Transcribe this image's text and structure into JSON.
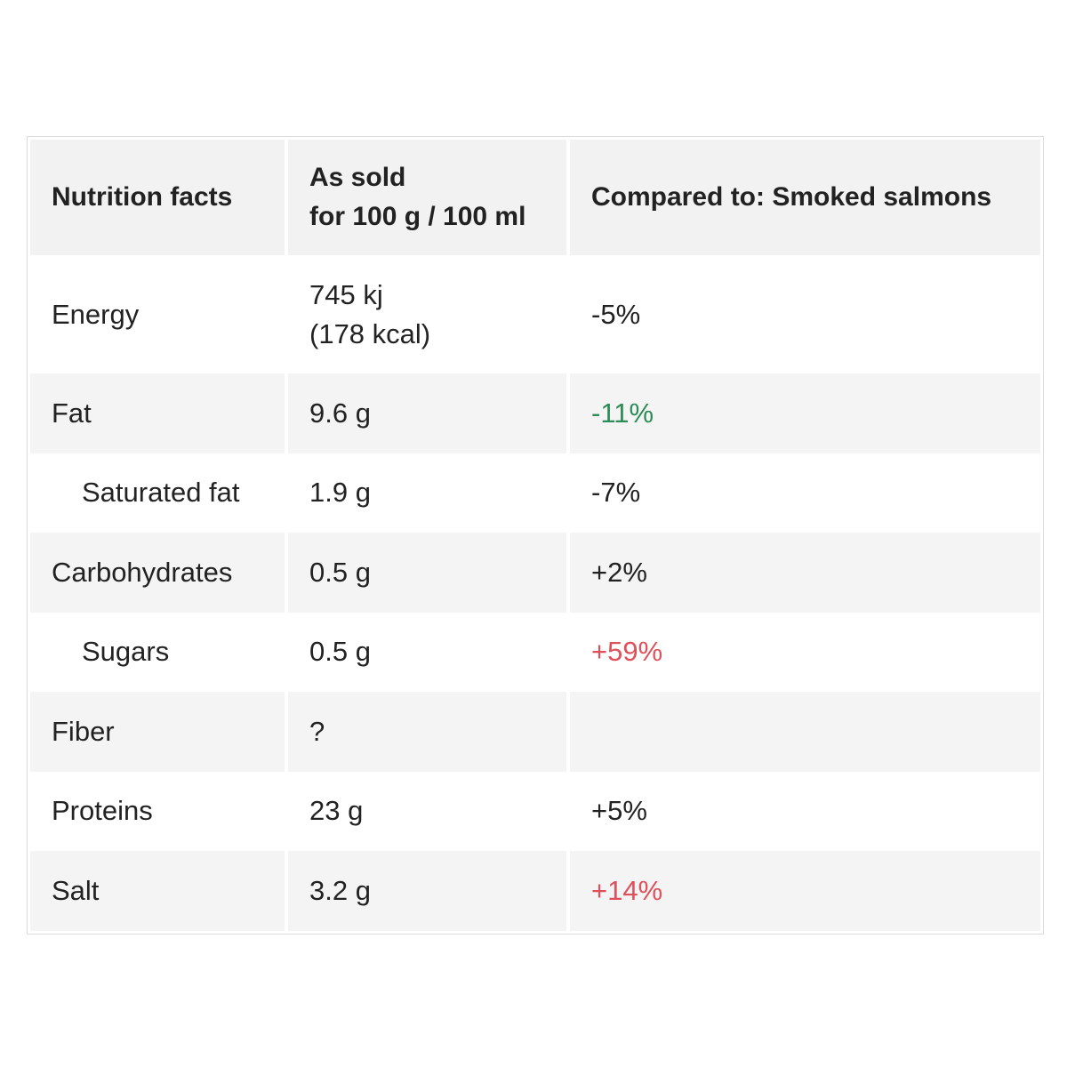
{
  "table": {
    "header": {
      "col1": "Nutrition facts",
      "col2_line1": "As sold",
      "col2_line2": "for 100 g / 100 ml",
      "col3": "Compared to: Smoked salmons"
    },
    "rows": [
      {
        "name": "Energy",
        "value_line1": "745 kj",
        "value_line2": "(178 kcal)",
        "compare": "-5%",
        "compare_color": "#222222"
      },
      {
        "name": "Fat",
        "value": "9.6 g",
        "compare": "-11%",
        "compare_color": "#2e8b57"
      },
      {
        "name": "Saturated fat",
        "value": "1.9 g",
        "compare": "-7%",
        "compare_color": "#222222"
      },
      {
        "name": "Carbohydrates",
        "value": "0.5 g",
        "compare": "+2%",
        "compare_color": "#222222"
      },
      {
        "name": "Sugars",
        "value": "0.5 g",
        "compare": "+59%",
        "compare_color": "#e0505a"
      },
      {
        "name": "Fiber",
        "value": "?",
        "compare": "",
        "compare_color": "#222222"
      },
      {
        "name": "Proteins",
        "value": "23 g",
        "compare": "+5%",
        "compare_color": "#222222"
      },
      {
        "name": "Salt",
        "value": "3.2 g",
        "compare": "+14%",
        "compare_color": "#e0505a"
      }
    ]
  }
}
